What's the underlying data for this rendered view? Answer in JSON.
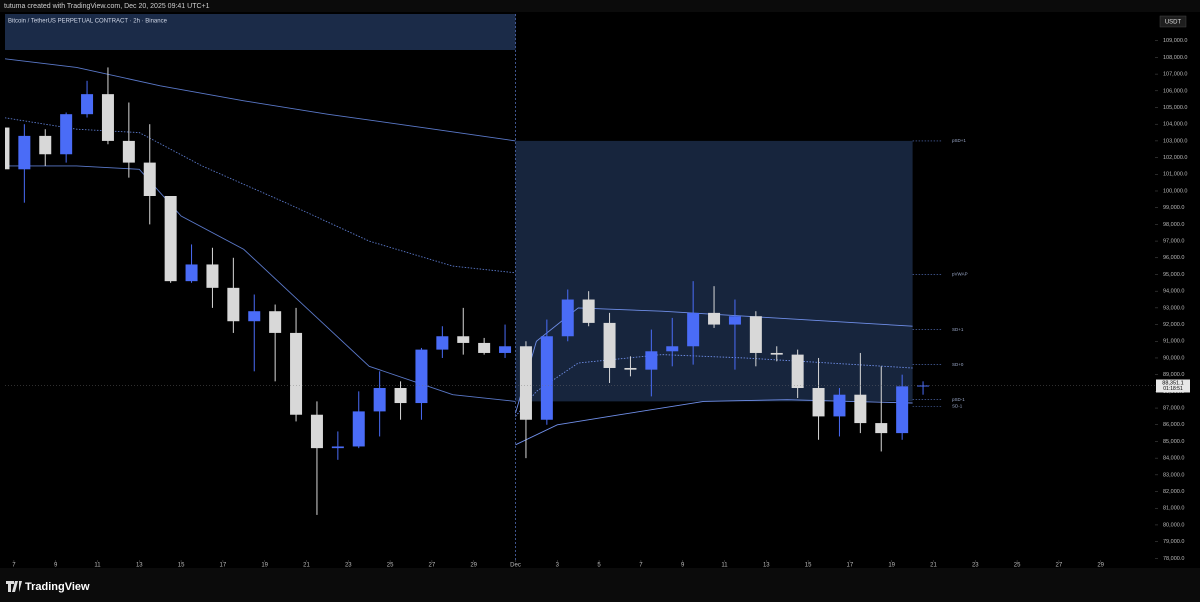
{
  "header": {
    "credit": "tutuma created with TradingView.com, Dec 20, 2025 09:41 UTC+1"
  },
  "footer": {
    "brand": "TradingView"
  },
  "chart_data": {
    "type": "candlestick",
    "title": "Bitcoin / TetherUS PERPETUAL CONTRACT · 2h · Binance",
    "currency": "USDT",
    "up_color": "#4a6cf7",
    "down_color": "#d8d8d8",
    "x": [
      "2025-11-06",
      "2025-11-07",
      "2025-11-08",
      "2025-11-09",
      "2025-11-10",
      "2025-11-11",
      "2025-11-12",
      "2025-11-13",
      "2025-11-14",
      "2025-11-15",
      "2025-11-16",
      "2025-11-17",
      "2025-11-18",
      "2025-11-19",
      "2025-11-20",
      "2025-11-21",
      "2025-11-22",
      "2025-11-23",
      "2025-11-24",
      "2025-11-25",
      "2025-11-26",
      "2025-11-27",
      "2025-11-28",
      "2025-11-29",
      "2025-11-30",
      "2025-12-01",
      "2025-12-02",
      "2025-12-03",
      "2025-12-04",
      "2025-12-05",
      "2025-12-06",
      "2025-12-07",
      "2025-12-08",
      "2025-12-09",
      "2025-12-10",
      "2025-12-11",
      "2025-12-12",
      "2025-12-13",
      "2025-12-14",
      "2025-12-15",
      "2025-12-16",
      "2025-12-17",
      "2025-12-18",
      "2025-12-19",
      "2025-12-20"
    ],
    "open": [
      103800,
      101300,
      103300,
      102200,
      104600,
      105800,
      103000,
      101700,
      99700,
      94600,
      95600,
      94200,
      92200,
      92800,
      91500,
      86600,
      84600,
      84700,
      86800,
      88200,
      87300,
      90500,
      91300,
      90900,
      90300,
      90700,
      86300,
      91300,
      93500,
      92100,
      89400,
      89300,
      90400,
      90700,
      92700,
      92000,
      92500,
      90300,
      90200,
      88200,
      86500,
      87800,
      86100,
      85500,
      88300
    ],
    "high": [
      104500,
      104000,
      103700,
      104700,
      106600,
      107400,
      105300,
      104000,
      99700,
      96800,
      96600,
      96000,
      93800,
      93200,
      93000,
      87400,
      85600,
      88000,
      89200,
      88600,
      90600,
      91900,
      93000,
      91200,
      92000,
      91000,
      92300,
      94100,
      94000,
      92700,
      90100,
      91700,
      92400,
      94600,
      94300,
      93500,
      92800,
      90700,
      90500,
      90000,
      88200,
      90300,
      89500,
      89000,
      88600
    ],
    "low": [
      100500,
      99300,
      101500,
      101700,
      104400,
      102800,
      100800,
      98000,
      94500,
      94500,
      93000,
      91500,
      89200,
      88600,
      86200,
      80600,
      83900,
      84600,
      85300,
      86300,
      86300,
      90000,
      90200,
      90200,
      90000,
      84000,
      86000,
      91000,
      91900,
      88500,
      88900,
      87700,
      89500,
      89600,
      91800,
      89300,
      89500,
      89800,
      87600,
      85100,
      85300,
      85500,
      84400,
      85100,
      87800
    ],
    "close": [
      101300,
      103300,
      102200,
      104600,
      105800,
      103000,
      101700,
      99700,
      94600,
      95600,
      94200,
      92200,
      92800,
      91500,
      86600,
      84600,
      84700,
      86800,
      88200,
      87300,
      90500,
      91300,
      90900,
      90300,
      90700,
      86300,
      91300,
      93500,
      92100,
      89400,
      89300,
      90400,
      90700,
      92700,
      92000,
      92500,
      90300,
      90200,
      88200,
      86500,
      87800,
      86100,
      85500,
      88300,
      88350
    ],
    "lines": [
      {
        "color": "#5a78c8",
        "dash": false,
        "x": [
          "2025-11-06",
          "2025-11-10",
          "2025-11-14",
          "2025-11-18",
          "2025-11-22",
          "2025-11-26",
          "2025-12-01"
        ],
        "values": [
          108000,
          107400,
          106300,
          105400,
          104600,
          103900,
          103000
        ]
      },
      {
        "color": "#5a78c8",
        "dash": true,
        "x": [
          "2025-11-06",
          "2025-11-10",
          "2025-11-13",
          "2025-11-16",
          "2025-11-20",
          "2025-11-24",
          "2025-11-28",
          "2025-12-01"
        ],
        "values": [
          104500,
          103700,
          103500,
          101500,
          99300,
          97000,
          95500,
          95100
        ]
      },
      {
        "color": "#5a78c8",
        "dash": false,
        "x": [
          "2025-11-06",
          "2025-11-10",
          "2025-11-13",
          "2025-11-15",
          "2025-11-18",
          "2025-11-21",
          "2025-11-24",
          "2025-11-28",
          "2025-12-01"
        ],
        "values": [
          101500,
          101500,
          101300,
          98500,
          96500,
          93000,
          89500,
          87800,
          87400
        ]
      },
      {
        "color": "#6f8ee8",
        "dash": false,
        "x": [
          "2025-12-01",
          "2025-12-02",
          "2025-12-04",
          "2025-12-08",
          "2025-12-12",
          "2025-12-16",
          "2025-12-20"
        ],
        "values": [
          86700,
          91000,
          93000,
          92800,
          92500,
          92200,
          91900
        ]
      },
      {
        "color": "#6f8ee8",
        "dash": true,
        "x": [
          "2025-12-01",
          "2025-12-02",
          "2025-12-04",
          "2025-12-08",
          "2025-12-12",
          "2025-12-16",
          "2025-12-20"
        ],
        "values": [
          86500,
          88000,
          89700,
          90200,
          90000,
          89700,
          89400
        ]
      },
      {
        "color": "#6f8ee8",
        "dash": false,
        "x": [
          "2025-12-01",
          "2025-12-03",
          "2025-12-06",
          "2025-12-10",
          "2025-12-14",
          "2025-12-17",
          "2025-12-20"
        ],
        "values": [
          84800,
          86000,
          86600,
          87400,
          87500,
          87400,
          87300
        ]
      }
    ],
    "range_box": {
      "x": [
        "2025-12-01",
        "2025-12-20"
      ],
      "values": [
        103000,
        87400
      ],
      "color": "#1b2b48"
    },
    "levels": [
      {
        "label": "pSD+1",
        "value": 103000
      },
      {
        "label": "pVWAP",
        "value": 95000
      },
      {
        "label": "SD+1",
        "value": 91700
      },
      {
        "label": "SD+0",
        "value": 89600
      },
      {
        "label": "pSD-1",
        "value": 87500
      },
      {
        "label": "SD-1",
        "value": 87100
      }
    ],
    "last_price": 88351.1,
    "last_price_label": "88,351.1",
    "countdown": "01:18:51",
    "xlim": [
      "2025-11-06",
      "2025-12-31"
    ],
    "xticks": [
      {
        "value": "2025-11-07",
        "label": "7"
      },
      {
        "value": "2025-11-09",
        "label": "9"
      },
      {
        "value": "2025-11-11",
        "label": "11"
      },
      {
        "value": "2025-11-13",
        "label": "13"
      },
      {
        "value": "2025-11-15",
        "label": "15"
      },
      {
        "value": "2025-11-17",
        "label": "17"
      },
      {
        "value": "2025-11-19",
        "label": "19"
      },
      {
        "value": "2025-11-21",
        "label": "21"
      },
      {
        "value": "2025-11-23",
        "label": "23"
      },
      {
        "value": "2025-11-25",
        "label": "25"
      },
      {
        "value": "2025-11-27",
        "label": "27"
      },
      {
        "value": "2025-11-29",
        "label": "29"
      },
      {
        "value": "2025-12-01",
        "label": "Dec"
      },
      {
        "value": "2025-12-03",
        "label": "3"
      },
      {
        "value": "2025-12-05",
        "label": "5"
      },
      {
        "value": "2025-12-07",
        "label": "7"
      },
      {
        "value": "2025-12-09",
        "label": "9"
      },
      {
        "value": "2025-12-11",
        "label": "11"
      },
      {
        "value": "2025-12-13",
        "label": "13"
      },
      {
        "value": "2025-12-15",
        "label": "15"
      },
      {
        "value": "2025-12-17",
        "label": "17"
      },
      {
        "value": "2025-12-19",
        "label": "19"
      },
      {
        "value": "2025-12-21",
        "label": "21"
      },
      {
        "value": "2025-12-23",
        "label": "23"
      },
      {
        "value": "2025-12-25",
        "label": "25"
      },
      {
        "value": "2025-12-27",
        "label": "27"
      },
      {
        "value": "2025-12-29",
        "label": "29"
      }
    ],
    "ylim": [
      77900,
      110600
    ],
    "yticks": [
      {
        "value": 78000,
        "label": "78,000.0"
      },
      {
        "value": 79000,
        "label": "79,000.0"
      },
      {
        "value": 80000,
        "label": "80,000.0"
      },
      {
        "value": 81000,
        "label": "81,000.0"
      },
      {
        "value": 82000,
        "label": "82,000.0"
      },
      {
        "value": 83000,
        "label": "83,000.0"
      },
      {
        "value": 84000,
        "label": "84,000.0"
      },
      {
        "value": 85000,
        "label": "85,000.0"
      },
      {
        "value": 86000,
        "label": "86,000.0"
      },
      {
        "value": 87000,
        "label": "87,000.0"
      },
      {
        "value": 88000,
        "label": "88,000.0"
      },
      {
        "value": 89000,
        "label": "89,000.0"
      },
      {
        "value": 90000,
        "label": "90,000.0"
      },
      {
        "value": 91000,
        "label": "91,000.0"
      },
      {
        "value": 92000,
        "label": "92,000.0"
      },
      {
        "value": 93000,
        "label": "93,000.0"
      },
      {
        "value": 94000,
        "label": "94,000.0"
      },
      {
        "value": 95000,
        "label": "95,000.0"
      },
      {
        "value": 96000,
        "label": "96,000.0"
      },
      {
        "value": 97000,
        "label": "97,000.0"
      },
      {
        "value": 98000,
        "label": "98,000.0"
      },
      {
        "value": 99000,
        "label": "99,000.0"
      },
      {
        "value": 100000,
        "label": "100,000.0"
      },
      {
        "value": 101000,
        "label": "101,000.0"
      },
      {
        "value": 102000,
        "label": "102,000.0"
      },
      {
        "value": 103000,
        "label": "103,000.0"
      },
      {
        "value": 104000,
        "label": "104,000.0"
      },
      {
        "value": 105000,
        "label": "105,000.0"
      },
      {
        "value": 106000,
        "label": "106,000.0"
      },
      {
        "value": 107000,
        "label": "107,000.0"
      },
      {
        "value": 108000,
        "label": "108,000.0"
      },
      {
        "value": 109000,
        "label": "109,000.0"
      }
    ]
  }
}
